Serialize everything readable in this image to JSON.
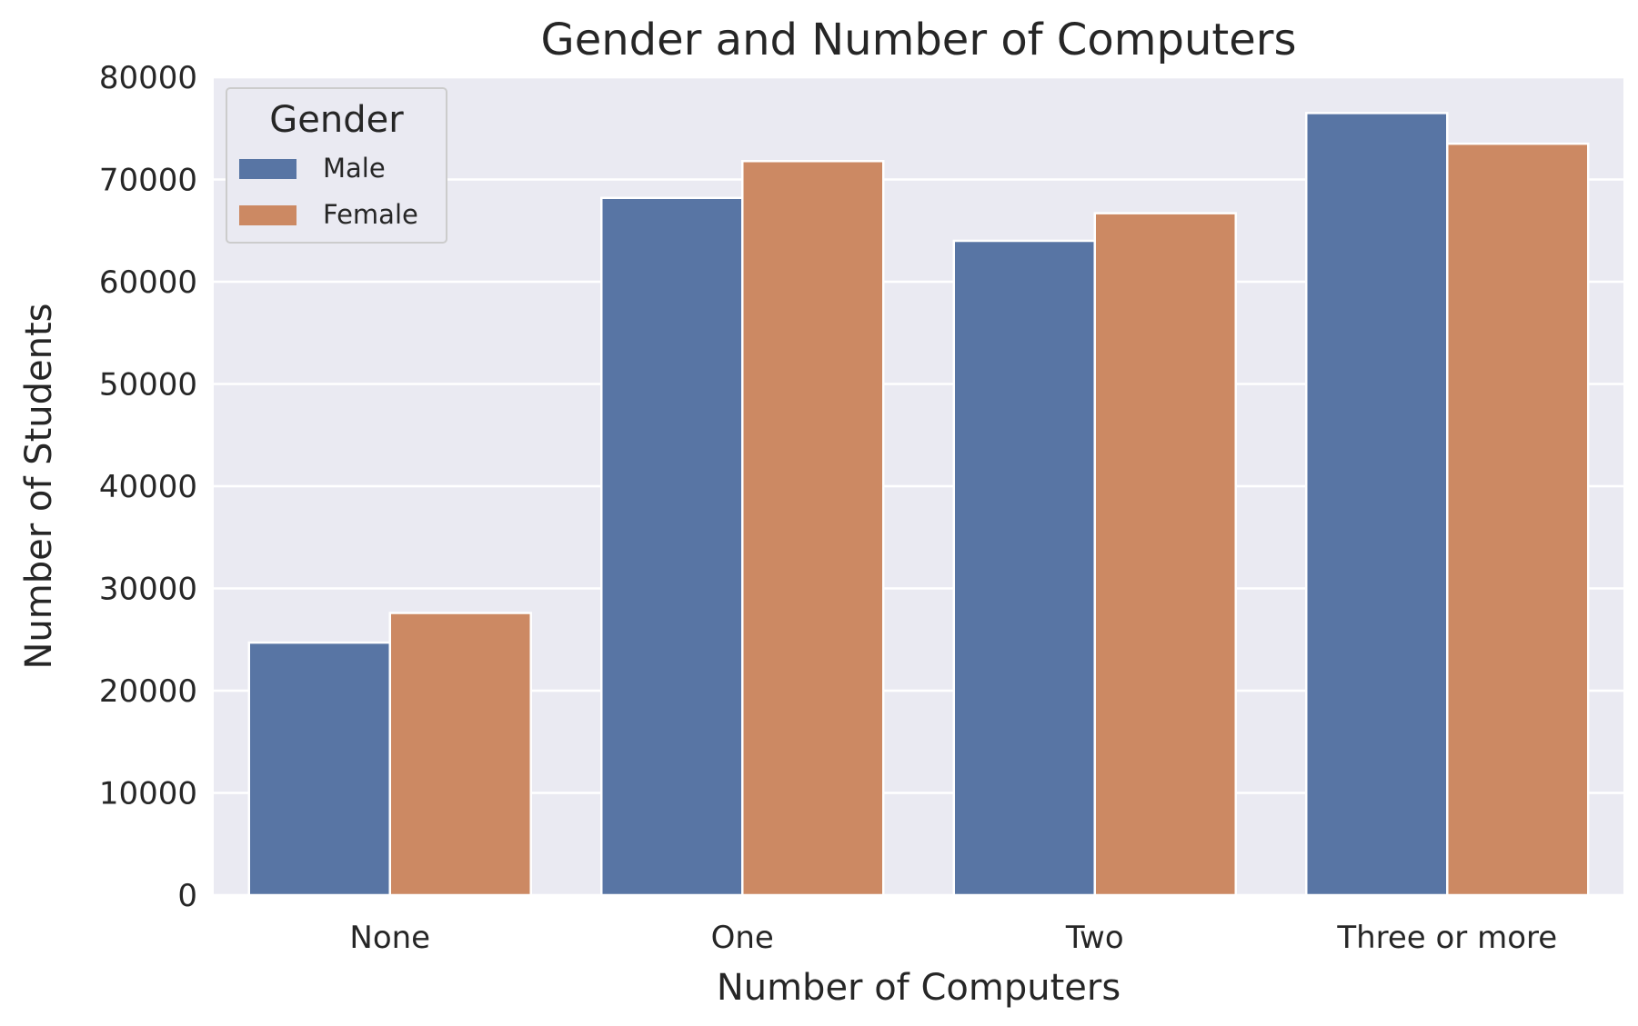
{
  "chart_data": {
    "type": "bar",
    "title": "Gender and Number of Computers",
    "xlabel": "Number of Computers",
    "ylabel": "Number of Students",
    "categories": [
      "None",
      "One",
      "Two",
      "Three or more"
    ],
    "series": [
      {
        "name": "Male",
        "color": "#5875a4",
        "values": [
          24700,
          68200,
          64000,
          76500
        ]
      },
      {
        "name": "Female",
        "color": "#cc8963",
        "values": [
          27600,
          71800,
          66700,
          73500
        ]
      }
    ],
    "ylim": [
      0,
      80000
    ],
    "yticks": [
      0,
      10000,
      20000,
      30000,
      40000,
      50000,
      60000,
      70000,
      80000
    ],
    "grid": true,
    "legend": {
      "title": "Gender",
      "placement": "top-left"
    },
    "background_color": "#eaeaf2"
  }
}
